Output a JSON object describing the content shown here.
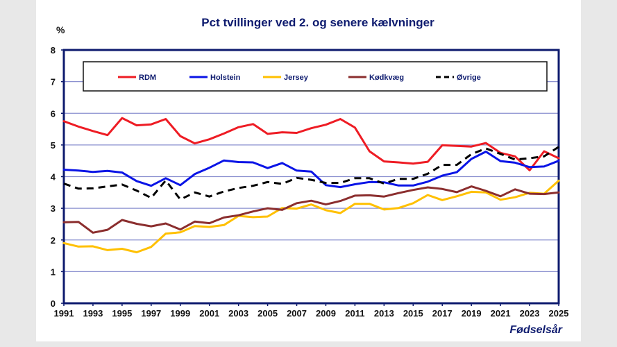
{
  "chart_data": {
    "type": "line",
    "title": "Pct tvillinger ved 2. og senere kælvninger",
    "ylabel": "%",
    "xlabel": "Fødselsår",
    "ylim": [
      0,
      8
    ],
    "xlim": [
      1991,
      2025
    ],
    "grid": true,
    "legend_position": "top",
    "y_ticks": [
      "0",
      "1",
      "2",
      "3",
      "4",
      "5",
      "6",
      "7",
      "8"
    ],
    "x_ticks": [
      "1991",
      "1993",
      "1995",
      "1997",
      "1999",
      "2001",
      "2003",
      "2005",
      "2007",
      "2009",
      "2011",
      "2013",
      "2015",
      "2017",
      "2019",
      "2021",
      "2023",
      "2025"
    ],
    "x": [
      1991,
      1992,
      1993,
      1994,
      1995,
      1996,
      1997,
      1998,
      1999,
      2000,
      2001,
      2002,
      2003,
      2004,
      2005,
      2006,
      2007,
      2008,
      2009,
      2010,
      2011,
      2012,
      2013,
      2014,
      2015,
      2016,
      2017,
      2018,
      2019,
      2020,
      2021,
      2022,
      2023,
      2024,
      2025
    ],
    "series": [
      {
        "name": "RDM",
        "color": "#ee1c24",
        "dash": false,
        "values": [
          5.75,
          5.58,
          5.44,
          5.31,
          5.85,
          5.62,
          5.65,
          5.82,
          5.28,
          5.05,
          5.18,
          5.36,
          5.56,
          5.66,
          5.35,
          5.4,
          5.38,
          5.53,
          5.64,
          5.82,
          5.55,
          4.8,
          4.48,
          4.45,
          4.41,
          4.47,
          4.99,
          4.97,
          4.95,
          5.06,
          4.75,
          4.64,
          4.2,
          4.8,
          4.58
        ]
      },
      {
        "name": "Holstein",
        "color": "#0a14e6",
        "dash": false,
        "values": [
          4.22,
          4.19,
          4.15,
          4.18,
          4.13,
          3.86,
          3.71,
          3.95,
          3.73,
          4.08,
          4.28,
          4.51,
          4.46,
          4.45,
          4.27,
          4.43,
          4.19,
          4.16,
          3.73,
          3.67,
          3.76,
          3.83,
          3.82,
          3.72,
          3.72,
          3.84,
          4.03,
          4.14,
          4.56,
          4.79,
          4.49,
          4.44,
          4.3,
          4.32,
          4.5
        ]
      },
      {
        "name": "Jersey",
        "color": "#ffc000",
        "dash": false,
        "values": [
          1.9,
          1.79,
          1.8,
          1.68,
          1.72,
          1.61,
          1.78,
          2.2,
          2.24,
          2.44,
          2.41,
          2.47,
          2.76,
          2.72,
          2.74,
          3.01,
          2.99,
          3.12,
          2.94,
          2.85,
          3.14,
          3.14,
          2.96,
          3.01,
          3.16,
          3.42,
          3.26,
          3.38,
          3.52,
          3.5,
          3.27,
          3.35,
          3.49,
          3.46,
          3.87
        ]
      },
      {
        "name": "Kødkvæg",
        "color": "#8b2e2e",
        "dash": false,
        "values": [
          2.56,
          2.57,
          2.23,
          2.32,
          2.63,
          2.51,
          2.43,
          2.52,
          2.33,
          2.58,
          2.53,
          2.71,
          2.78,
          2.9,
          3.0,
          2.95,
          3.16,
          3.24,
          3.12,
          3.23,
          3.4,
          3.41,
          3.37,
          3.48,
          3.58,
          3.66,
          3.61,
          3.51,
          3.69,
          3.55,
          3.38,
          3.6,
          3.46,
          3.45,
          3.5
        ]
      },
      {
        "name": "Øvrige",
        "color": "#000000",
        "dash": true,
        "values": [
          3.78,
          3.62,
          3.63,
          3.69,
          3.75,
          3.56,
          3.33,
          3.88,
          3.28,
          3.5,
          3.37,
          3.53,
          3.64,
          3.71,
          3.83,
          3.77,
          3.96,
          3.9,
          3.8,
          3.8,
          3.95,
          3.95,
          3.78,
          3.93,
          3.93,
          4.09,
          4.37,
          4.37,
          4.71,
          4.89,
          4.72,
          4.54,
          4.58,
          4.64,
          4.94
        ]
      }
    ]
  }
}
